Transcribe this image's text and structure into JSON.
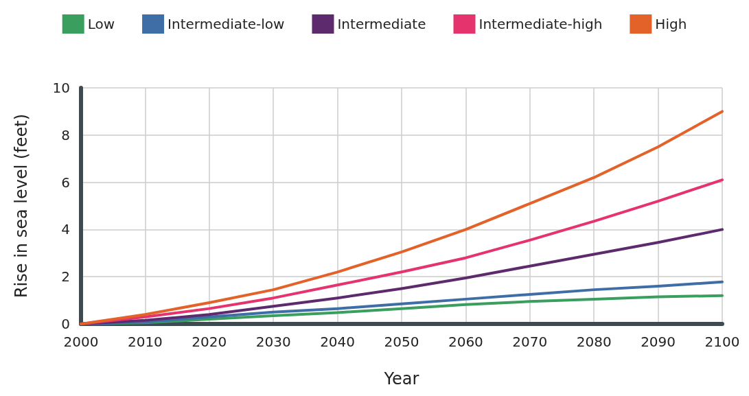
{
  "chart_data": {
    "type": "line",
    "xlabel": "Year",
    "ylabel": "Rise in sea level (feet)",
    "x": [
      2000,
      2010,
      2020,
      2030,
      2040,
      2050,
      2060,
      2070,
      2080,
      2090,
      2100
    ],
    "series": [
      {
        "name": "Low",
        "color": "#3a9e5f",
        "values": [
          0,
          0.05,
          0.2,
          0.35,
          0.48,
          0.65,
          0.82,
          0.95,
          1.05,
          1.15,
          1.2
        ]
      },
      {
        "name": "Intermediate-low",
        "color": "#3f6ea6",
        "values": [
          0,
          0.08,
          0.3,
          0.5,
          0.65,
          0.85,
          1.05,
          1.25,
          1.45,
          1.6,
          1.78
        ]
      },
      {
        "name": "Intermediate",
        "color": "#5e2a6e",
        "values": [
          0,
          0.15,
          0.4,
          0.75,
          1.1,
          1.5,
          1.95,
          2.45,
          2.95,
          3.45,
          4.0
        ]
      },
      {
        "name": "Intermediate-high",
        "color": "#e5336e",
        "values": [
          0,
          0.3,
          0.65,
          1.1,
          1.65,
          2.2,
          2.8,
          3.55,
          4.35,
          5.2,
          6.1
        ]
      },
      {
        "name": "High",
        "color": "#e2622a",
        "values": [
          0,
          0.4,
          0.9,
          1.45,
          2.2,
          3.05,
          4.0,
          5.1,
          6.2,
          7.5,
          9.0
        ]
      }
    ],
    "xlim": [
      2000,
      2100
    ],
    "xticks": [
      2000,
      2010,
      2020,
      2030,
      2040,
      2050,
      2060,
      2070,
      2080,
      2090,
      2100
    ],
    "ylim": [
      0,
      10
    ],
    "yticks": [
      0,
      2,
      4,
      6,
      8,
      10
    ],
    "grid": true,
    "legend": "top",
    "marker": "none",
    "line_style": "solid"
  }
}
